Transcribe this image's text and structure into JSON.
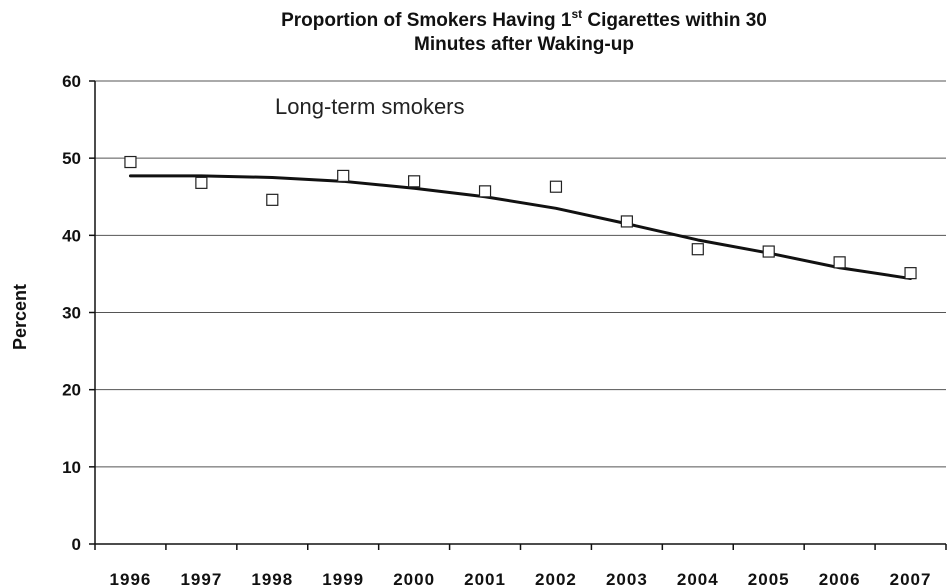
{
  "chart_data": {
    "type": "scatter",
    "title_line1_before": "Proportion of Smokers Having 1",
    "title_sup": "st",
    "title_line1_after": " Cigarettes within 30",
    "title_line2": "Minutes after Waking-up",
    "ylabel": "Percent",
    "xlabel": "",
    "annotation": "Long-term smokers",
    "ylim": [
      0,
      60
    ],
    "yticks": [
      "0",
      "10",
      "20",
      "30",
      "40",
      "50",
      "60"
    ],
    "categories": [
      "1996",
      "1997",
      "1998",
      "1999",
      "2000",
      "2001",
      "2002",
      "2003",
      "2004",
      "2005",
      "2006",
      "2007"
    ],
    "series": [
      {
        "values": [
          49.5,
          46.8,
          44.6,
          47.7,
          47.0,
          45.7,
          46.3,
          41.8,
          38.2,
          37.9,
          36.5,
          35.1
        ]
      },
      {
        "values": [
          47.7,
          47.7,
          47.5,
          47.0,
          46.1,
          45.0,
          43.5,
          41.5,
          39.4,
          37.7,
          35.8,
          34.4
        ]
      }
    ],
    "grid": true,
    "colors": {
      "line": "#111111",
      "marker_stroke": "#222222",
      "grid": "#555555"
    }
  }
}
